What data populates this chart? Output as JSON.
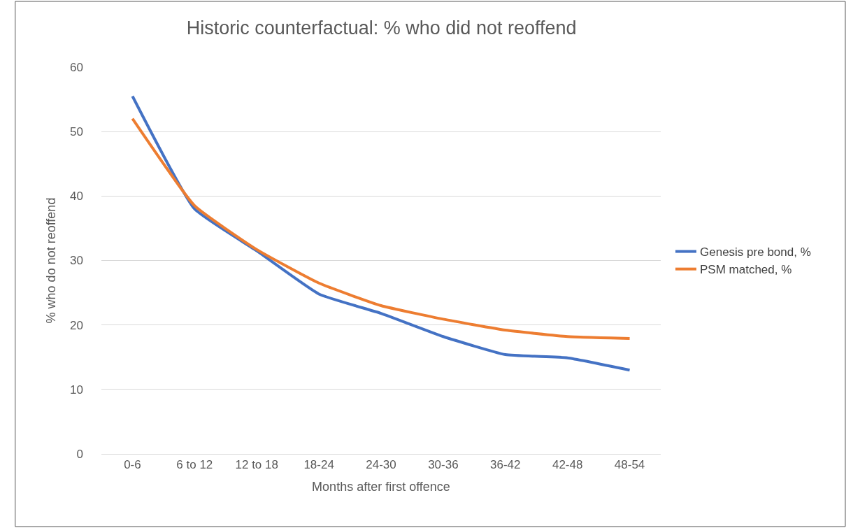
{
  "chart_data": {
    "type": "line",
    "title": "Historic counterfactual: % who did not reoffend",
    "xlabel": "Months after first offence",
    "ylabel": "% who do not reoffend",
    "categories": [
      "0-6",
      "6 to 12",
      "12 to 18",
      "18-24",
      "24-30",
      "30-36",
      "36-42",
      "42-48",
      "48-54"
    ],
    "series": [
      {
        "name": "Genesis pre bond, %",
        "color": "#4472c4",
        "values": [
          55.5,
          38.0,
          31.5,
          24.8,
          21.8,
          18.2,
          15.4,
          14.9,
          13.0
        ]
      },
      {
        "name": "PSM matched, %",
        "color": "#ed7d31",
        "values": [
          52.0,
          38.5,
          31.7,
          26.5,
          23.0,
          20.9,
          19.2,
          18.2,
          17.9
        ]
      }
    ],
    "ylim": [
      0,
      60
    ],
    "yticks": [
      0,
      10,
      20,
      30,
      40,
      50,
      60
    ],
    "grid": "y",
    "legend": "right",
    "marker": "none",
    "line_style": "solid"
  }
}
